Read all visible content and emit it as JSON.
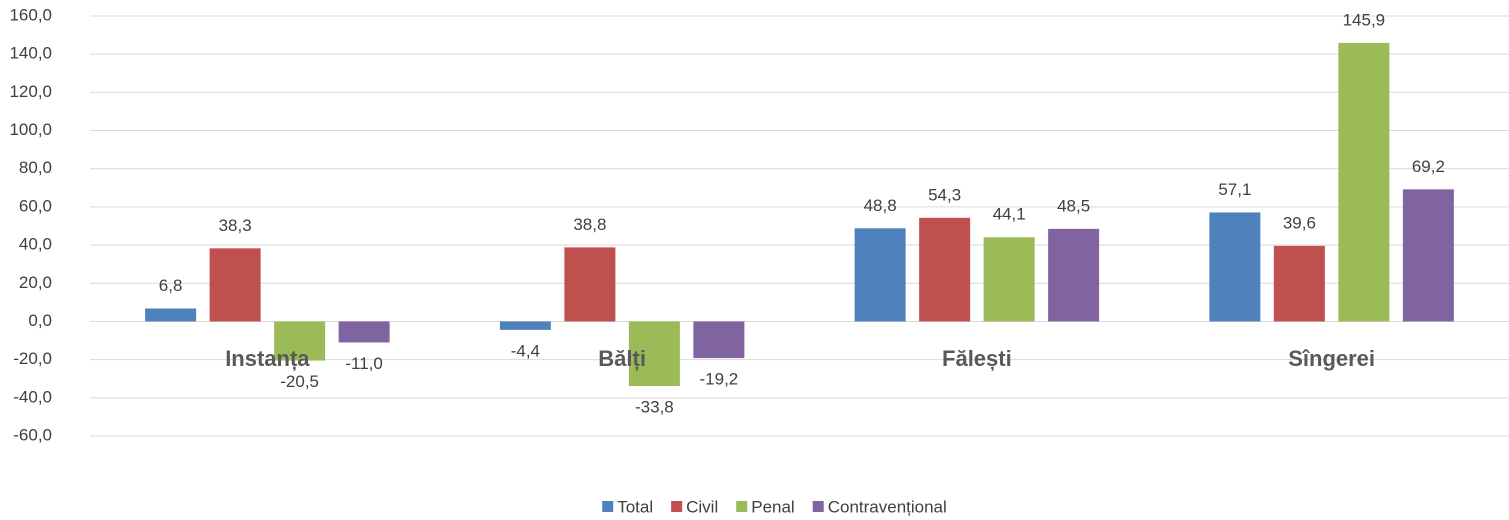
{
  "chart_data": {
    "type": "bar",
    "categories": [
      "Instanța",
      "Bălți",
      "Fălești",
      "Sîngerei"
    ],
    "series": [
      {
        "name": "Total",
        "color": "#4f81bd",
        "values": [
          6.8,
          -4.4,
          48.8,
          57.1
        ],
        "value_labels": [
          "6,8",
          "-4,4",
          "48,8",
          "57,1"
        ]
      },
      {
        "name": "Civil",
        "color": "#c0504d",
        "values": [
          38.3,
          38.8,
          54.3,
          39.6
        ],
        "value_labels": [
          "38,3",
          "38,8",
          "54,3",
          "39,6"
        ]
      },
      {
        "name": "Penal",
        "color": "#9bbb59",
        "values": [
          -20.5,
          -33.8,
          44.1,
          145.9
        ],
        "value_labels": [
          "-20,5",
          "-33,8",
          "44,1",
          "145,9"
        ]
      },
      {
        "name": "Contravențional",
        "color": "#8064a2",
        "values": [
          -11.0,
          -19.2,
          48.5,
          69.2
        ],
        "value_labels": [
          "-11,0",
          "-19,2",
          "48,5",
          "69,2"
        ]
      }
    ],
    "ylim": [
      -60,
      160
    ],
    "yticks": [
      {
        "value": -60,
        "label": "-60,0"
      },
      {
        "value": -40,
        "label": "-40,0"
      },
      {
        "value": -20,
        "label": "-20,0"
      },
      {
        "value": 0,
        "label": "0,0"
      },
      {
        "value": 20,
        "label": "20,0"
      },
      {
        "value": 40,
        "label": "40,0"
      },
      {
        "value": 60,
        "label": "60,0"
      },
      {
        "value": 80,
        "label": "80,0"
      },
      {
        "value": 100,
        "label": "100,0"
      },
      {
        "value": 120,
        "label": "120,0"
      },
      {
        "value": 140,
        "label": "140,0"
      },
      {
        "value": 160,
        "label": "160,0"
      }
    ],
    "grid": true,
    "legend": "bottom"
  }
}
